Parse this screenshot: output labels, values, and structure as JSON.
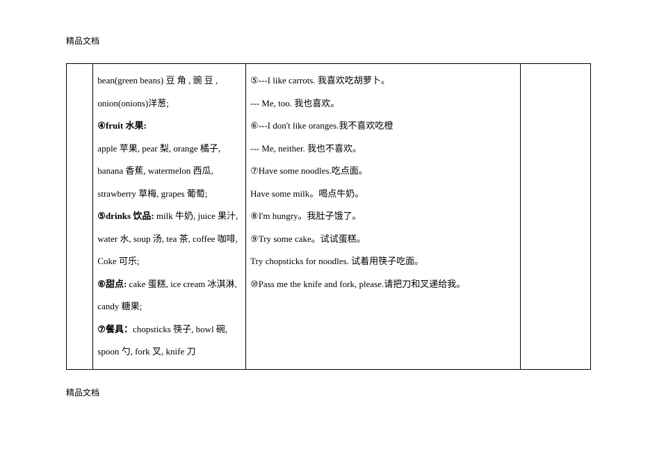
{
  "header_text": "精品文档",
  "footer_text": "精品文档",
  "table": {
    "col1": {
      "line1_pre": "bean(green   beans) 豆 角 ,  豌 豆 , onion(onions)洋葱;",
      "num4": "④",
      "label4_strong": "fruit 水果:",
      "line4_body": "apple 苹果, pear 梨, orange 橘子, banana 香蕉, watermelon 西瓜, strawberry 草梅, grapes 葡萄;",
      "num5": "⑤",
      "label5_strong": "drinks 饮品:",
      "line5_body": " milk 牛奶, juice 果汁, water 水, soup 汤, tea 茶, coffee 咖啡, Coke 可乐;",
      "num6": "⑥",
      "label6": "甜点: ",
      "line6_body": "cake 蛋糕, ice cream 冰淇淋, candy 糖果;",
      "num7": "⑦",
      "label7": "餐具：",
      "line7_body": "chopsticks 筷子, bowl 碗, spoon 勺, fork 叉, knife 刀"
    },
    "col2": {
      "s5_num": "⑤",
      "s5_line1": "---I like carrots. 我喜欢吃胡萝卜。",
      "s5_line2": "   --- Me, too. 我也喜欢。",
      "s6_num": "⑥",
      "s6_line1": "---I don't like oranges.我不喜欢吃橙",
      "s6_line2": "--- Me, neither. 我也不喜欢。",
      "s7_num": "⑦",
      "s7_line1": "Have some noodles.吃点面。",
      "s7_line2": "  Have some milk。喝点牛奶。",
      "s8_num": "⑧",
      "s8_line": "I'm hungry。我肚子饿了。",
      "s9_num": "⑨",
      "s9_line1": "Try some cake。试试蛋糕。",
      "s9_line2": "  Try chopsticks for noodles. 试着用筷子吃面。",
      "s10_num": "⑩",
      "s10_line": "Pass me the knife and fork, please.请把刀和叉递给我。"
    }
  }
}
